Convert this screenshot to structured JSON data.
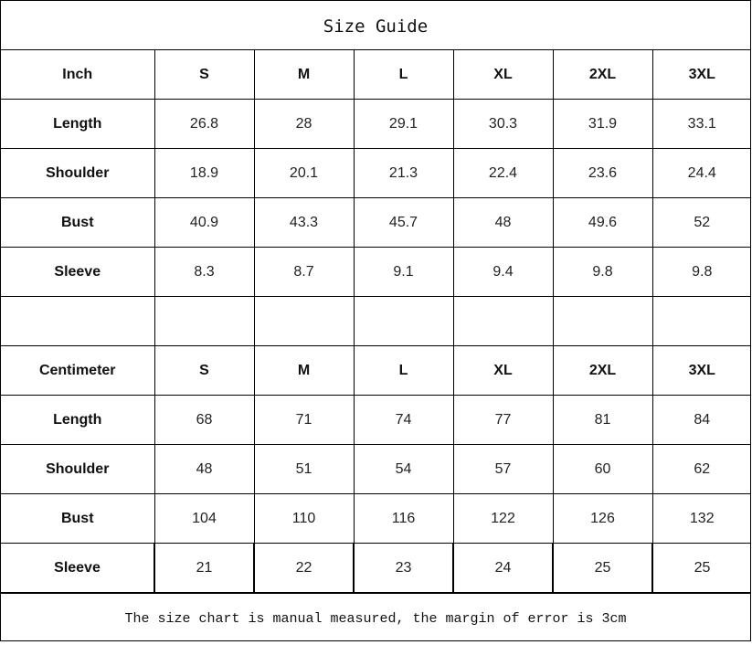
{
  "title": "Size Guide",
  "sizes": [
    "S",
    "M",
    "L",
    "XL",
    "2XL",
    "3XL"
  ],
  "tables": [
    {
      "unit": "Inch",
      "rows": [
        {
          "label": "Length",
          "values": [
            "26.8",
            "28",
            "29.1",
            "30.3",
            "31.9",
            "33.1"
          ]
        },
        {
          "label": "Shoulder",
          "values": [
            "18.9",
            "20.1",
            "21.3",
            "22.4",
            "23.6",
            "24.4"
          ]
        },
        {
          "label": "Bust",
          "values": [
            "40.9",
            "43.3",
            "45.7",
            "48",
            "49.6",
            "52"
          ]
        },
        {
          "label": "Sleeve",
          "values": [
            "8.3",
            "8.7",
            "9.1",
            "9.4",
            "9.8",
            "9.8"
          ]
        }
      ]
    },
    {
      "unit": "Centimeter",
      "rows": [
        {
          "label": "Length",
          "values": [
            "68",
            "71",
            "74",
            "77",
            "81",
            "84"
          ]
        },
        {
          "label": "Shoulder",
          "values": [
            "48",
            "51",
            "54",
            "57",
            "60",
            "62"
          ]
        },
        {
          "label": "Bust",
          "values": [
            "104",
            "110",
            "116",
            "122",
            "126",
            "132"
          ]
        },
        {
          "label": "Sleeve",
          "values": [
            "21",
            "22",
            "23",
            "24",
            "25",
            "25"
          ]
        }
      ]
    }
  ],
  "footer": "The size chart is manual measured, the margin of error is 3cm"
}
